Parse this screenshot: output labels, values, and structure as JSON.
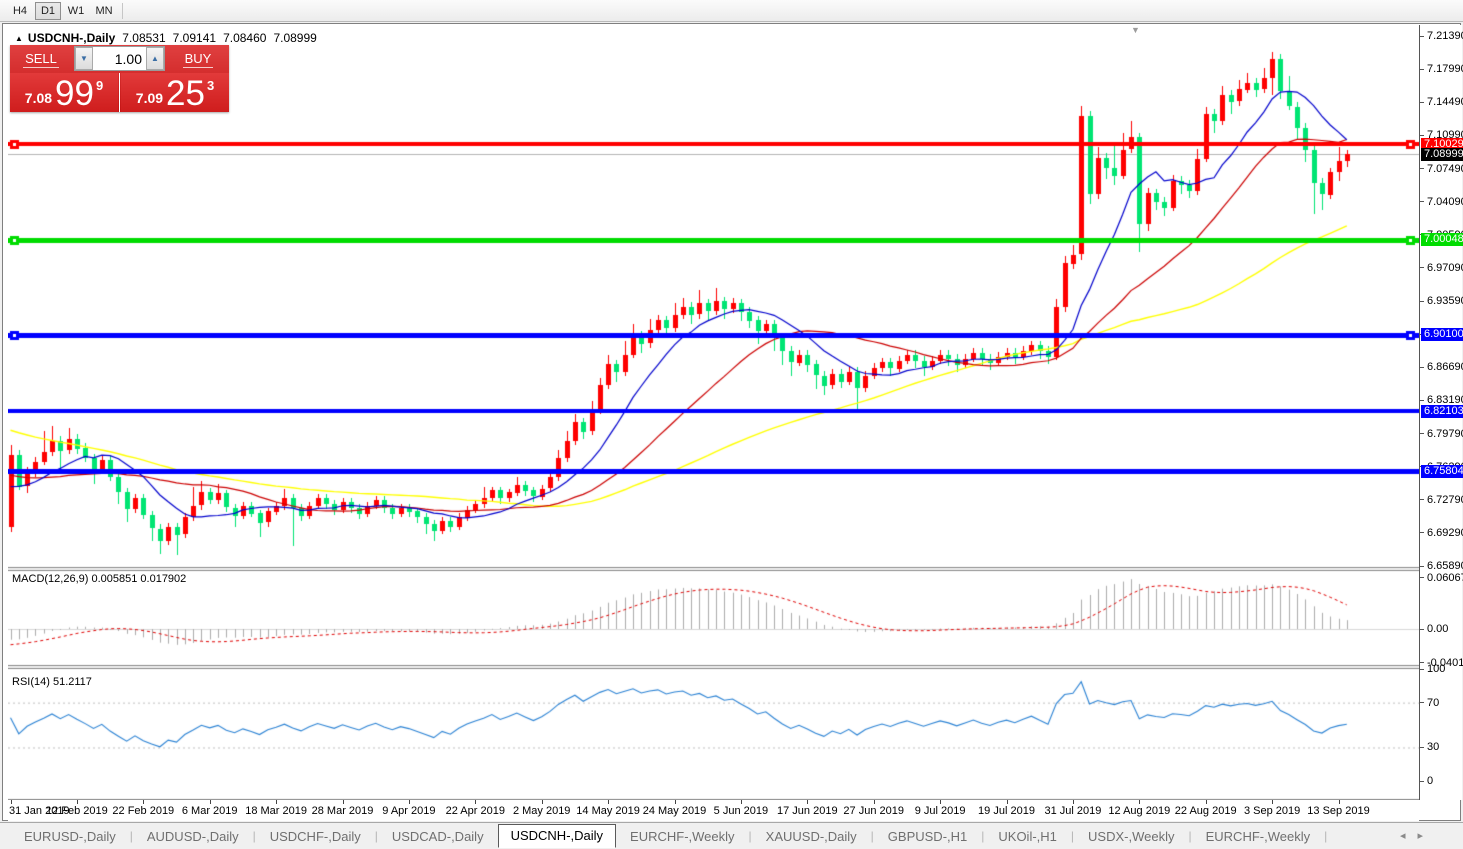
{
  "toolbar": {
    "timeframes": [
      "H4",
      "D1",
      "W1",
      "MN"
    ],
    "active": "D1"
  },
  "header": {
    "title_arrow": "▲",
    "symbol_title": "USDCNH-,Daily",
    "ohlc": {
      "open": "7.08531",
      "high": "7.09141",
      "low": "7.08460",
      "close": "7.08999"
    },
    "scroll_marker": "▼"
  },
  "one_click": {
    "sell_label": "SELL",
    "buy_label": "BUY",
    "volume": "1.00",
    "spin_down": "▼",
    "spin_up": "▲",
    "sell_small": "7.08",
    "sell_big": "99",
    "sell_sup": "9",
    "buy_small": "7.09",
    "buy_big": "25",
    "buy_sup": "3"
  },
  "indicator_labels": {
    "macd": "MACD(12,26,9) 0.005851 0.017902",
    "rsi": "RSI(14) 51.2117"
  },
  "price_axis": {
    "ticks": [
      "7.21390",
      "7.17990",
      "7.14490",
      "7.10990",
      "7.07490",
      "7.04090",
      "7.00590",
      "6.97090",
      "6.93590",
      "6.90090",
      "6.86690",
      "6.83190",
      "6.79790",
      "6.76290",
      "6.72790",
      "6.69290",
      "6.65890"
    ],
    "top_price": 7.2139,
    "bottom_price": 6.6589
  },
  "macd_axis": {
    "ticks": [
      {
        "label": "0.060674",
        "v": 0.060674
      },
      {
        "label": "0.00",
        "v": 0
      },
      {
        "label": "-0.040152",
        "v": -0.040152
      }
    ]
  },
  "rsi_axis": {
    "ticks": [
      {
        "label": "100",
        "v": 100
      },
      {
        "label": "70",
        "v": 70
      },
      {
        "label": "30",
        "v": 30
      },
      {
        "label": "0",
        "v": 0
      }
    ]
  },
  "date_axis": [
    "31 Jan 2019",
    "12 Feb 2019",
    "22 Feb 2019",
    "6 Mar 2019",
    "18 Mar 2019",
    "28 Mar 2019",
    "9 Apr 2019",
    "22 Apr 2019",
    "2 May 2019",
    "14 May 2019",
    "24 May 2019",
    "5 Jun 2019",
    "17 Jun 2019",
    "27 Jun 2019",
    "9 Jul 2019",
    "19 Jul 2019",
    "31 Jul 2019",
    "12 Aug 2019",
    "22 Aug 2019",
    "3 Sep 2019",
    "13 Sep 2019"
  ],
  "tabs": {
    "items": [
      "EURUSD-,Daily",
      "AUDUSD-,Daily",
      "USDCHF-,Daily",
      "USDCAD-,Daily",
      "USDCNH-,Daily",
      "EURCHF-,Weekly",
      "XAUUSD-,Daily",
      "GBPUSD-,H1",
      "UKOil-,H1",
      "USDX-,Weekly",
      "EURCHF-,Weekly"
    ],
    "active_index": 4,
    "arrow_left": "◂",
    "arrow_right": "▸"
  },
  "chart_data": {
    "type": "candlestick_with_indicators",
    "symbol": "USDCNH",
    "timeframe": "Daily",
    "colors": {
      "up": "#fe0000",
      "down": "#00e573",
      "ma_fast": "#0000cd",
      "ma_mid": "#cc0000",
      "ma_slow": "#ffff00",
      "macd_hist": "#ababab",
      "macd_signal": "#e00000",
      "rsi_line": "#2a82d4",
      "current_line": "#b4b4b4",
      "level_dots": "#c0c0c0"
    },
    "current_price": {
      "value": 7.08999,
      "label": "7.08999",
      "badge_bg": "#000000"
    },
    "hlines": [
      {
        "price": 7.10029,
        "label": "7.10029",
        "color": "#ff0000",
        "width": 4,
        "handles": true
      },
      {
        "price": 7.00048,
        "label": "7.00048",
        "color": "#00dc00",
        "width": 5,
        "handles": true
      },
      {
        "price": 6.901,
        "label": "6.90100",
        "color": "#0000ff",
        "width": 5,
        "handles": true
      },
      {
        "price": 6.82103,
        "label": "6.82103",
        "color": "#0000ff",
        "width": 4,
        "handles": false
      },
      {
        "price": 6.75804,
        "label": "6.75804",
        "color": "#0000ff",
        "width": 5,
        "handles": false
      }
    ],
    "moving_averages": [
      {
        "period": 10,
        "type": "sma"
      },
      {
        "period": 25,
        "type": "sma"
      },
      {
        "period": 55,
        "type": "sma"
      }
    ],
    "macd_params": {
      "fast": 12,
      "slow": 26,
      "signal": 9,
      "value": 0.005851,
      "signal_value": 0.017902
    },
    "rsi_params": {
      "period": 14,
      "value": 51.2117,
      "levels": [
        70,
        30
      ]
    },
    "warmup_closes": [
      6.9,
      6.895,
      6.89,
      6.885,
      6.888,
      6.884,
      6.88,
      6.876,
      6.87,
      6.874,
      6.866,
      6.858,
      6.862,
      6.854,
      6.846,
      6.85,
      6.842,
      6.836,
      6.84,
      6.832,
      6.824,
      6.828,
      6.82,
      6.812,
      6.816,
      6.808,
      6.8,
      6.804,
      6.796,
      6.79,
      6.794,
      6.786,
      6.78,
      6.784,
      6.776,
      6.77,
      6.774,
      6.768,
      6.762,
      6.766,
      6.758,
      6.752,
      6.756,
      6.75,
      6.744,
      6.748,
      6.742,
      6.738,
      6.742,
      6.736,
      6.732,
      6.736,
      6.74,
      6.744,
      6.74,
      6.736
    ],
    "candles": [
      [
        6.7,
        6.786,
        6.695,
        6.775
      ],
      [
        6.775,
        6.78,
        6.738,
        6.742
      ],
      [
        6.742,
        6.763,
        6.736,
        6.758
      ],
      [
        6.758,
        6.773,
        6.752,
        6.768
      ],
      [
        6.768,
        6.8,
        6.764,
        6.778
      ],
      [
        6.778,
        6.805,
        6.774,
        6.79
      ],
      [
        6.79,
        6.795,
        6.76,
        6.78
      ],
      [
        6.78,
        6.803,
        6.776,
        6.792
      ],
      [
        6.792,
        6.797,
        6.776,
        6.782
      ],
      [
        6.782,
        6.788,
        6.768,
        6.772
      ],
      [
        6.772,
        6.776,
        6.745,
        6.76
      ],
      [
        6.76,
        6.774,
        6.756,
        6.77
      ],
      [
        6.77,
        6.774,
        6.748,
        6.752
      ],
      [
        6.752,
        6.757,
        6.724,
        6.736
      ],
      [
        6.736,
        6.741,
        6.705,
        6.718
      ],
      [
        6.718,
        6.734,
        6.714,
        6.73
      ],
      [
        6.73,
        6.734,
        6.708,
        6.712
      ],
      [
        6.712,
        6.716,
        6.685,
        6.698
      ],
      [
        6.698,
        6.703,
        6.672,
        6.685
      ],
      [
        6.685,
        6.704,
        6.681,
        6.7
      ],
      [
        6.7,
        6.704,
        6.67,
        6.692
      ],
      [
        6.692,
        6.714,
        6.688,
        6.71
      ],
      [
        6.71,
        6.742,
        6.706,
        6.722
      ],
      [
        6.722,
        6.748,
        6.718,
        6.736
      ],
      [
        6.736,
        6.741,
        6.724,
        6.728
      ],
      [
        6.728,
        6.745,
        6.724,
        6.735
      ],
      [
        6.735,
        6.739,
        6.716,
        6.72
      ],
      [
        6.72,
        6.724,
        6.7,
        6.712
      ],
      [
        6.712,
        6.726,
        6.708,
        6.722
      ],
      [
        6.722,
        6.726,
        6.71,
        6.714
      ],
      [
        6.714,
        6.718,
        6.69,
        6.704
      ],
      [
        6.704,
        6.72,
        6.7,
        6.716
      ],
      [
        6.716,
        6.726,
        6.712,
        6.722
      ],
      [
        6.722,
        6.74,
        6.718,
        6.73
      ],
      [
        6.73,
        6.734,
        6.68,
        6.72
      ],
      [
        6.72,
        6.724,
        6.706,
        6.712
      ],
      [
        6.712,
        6.726,
        6.708,
        6.722
      ],
      [
        6.722,
        6.734,
        6.718,
        6.73
      ],
      [
        6.73,
        6.734,
        6.718,
        6.724
      ],
      [
        6.724,
        6.728,
        6.712,
        6.718
      ],
      [
        6.718,
        6.73,
        6.714,
        6.726
      ],
      [
        6.726,
        6.73,
        6.714,
        6.72
      ],
      [
        6.72,
        6.724,
        6.708,
        6.714
      ],
      [
        6.714,
        6.726,
        6.71,
        6.722
      ],
      [
        6.722,
        6.732,
        6.718,
        6.728
      ],
      [
        6.728,
        6.732,
        6.714,
        6.72
      ],
      [
        6.72,
        6.724,
        6.708,
        6.714
      ],
      [
        6.714,
        6.724,
        6.71,
        6.72
      ],
      [
        6.72,
        6.724,
        6.71,
        6.716
      ],
      [
        6.716,
        6.72,
        6.704,
        6.71
      ],
      [
        6.71,
        6.714,
        6.692,
        6.703
      ],
      [
        6.703,
        6.707,
        6.685,
        6.696
      ],
      [
        6.696,
        6.71,
        6.692,
        6.706
      ],
      [
        6.706,
        6.71,
        6.694,
        6.7
      ],
      [
        6.7,
        6.714,
        6.696,
        6.71
      ],
      [
        6.71,
        6.722,
        6.706,
        6.718
      ],
      [
        6.718,
        6.728,
        6.714,
        6.724
      ],
      [
        6.724,
        6.742,
        6.72,
        6.73
      ],
      [
        6.73,
        6.742,
        6.726,
        6.738
      ],
      [
        6.738,
        6.742,
        6.724,
        6.73
      ],
      [
        6.73,
        6.74,
        6.726,
        6.736
      ],
      [
        6.736,
        6.752,
        6.732,
        6.744
      ],
      [
        6.744,
        6.748,
        6.732,
        6.738
      ],
      [
        6.738,
        6.742,
        6.726,
        6.732
      ],
      [
        6.732,
        6.744,
        6.728,
        6.74
      ],
      [
        6.74,
        6.756,
        6.736,
        6.752
      ],
      [
        6.752,
        6.78,
        6.748,
        6.772
      ],
      [
        6.772,
        6.8,
        6.768,
        6.79
      ],
      [
        6.79,
        6.818,
        6.786,
        6.81
      ],
      [
        6.81,
        6.814,
        6.792,
        6.8
      ],
      [
        6.8,
        6.832,
        6.796,
        6.822
      ],
      [
        6.822,
        6.856,
        6.818,
        6.848
      ],
      [
        6.848,
        6.88,
        6.844,
        6.87
      ],
      [
        6.87,
        6.875,
        6.852,
        6.862
      ],
      [
        6.862,
        6.895,
        6.858,
        6.88
      ],
      [
        6.88,
        6.912,
        6.876,
        6.9
      ],
      [
        6.9,
        6.905,
        6.882,
        6.892
      ],
      [
        6.892,
        6.918,
        6.888,
        6.906
      ],
      [
        6.906,
        6.922,
        6.902,
        6.916
      ],
      [
        6.916,
        6.921,
        6.898,
        6.908
      ],
      [
        6.908,
        6.934,
        6.904,
        6.922
      ],
      [
        6.922,
        6.94,
        6.918,
        6.93
      ],
      [
        6.93,
        6.935,
        6.912,
        6.922
      ],
      [
        6.922,
        6.948,
        6.918,
        6.934
      ],
      [
        6.934,
        6.939,
        6.916,
        6.926
      ],
      [
        6.926,
        6.95,
        6.922,
        6.936
      ],
      [
        6.936,
        6.941,
        6.918,
        6.928
      ],
      [
        6.928,
        6.94,
        6.924,
        6.934
      ],
      [
        6.934,
        6.939,
        6.916,
        6.925
      ],
      [
        6.925,
        6.93,
        6.908,
        6.916
      ],
      [
        6.916,
        6.921,
        6.892,
        6.905
      ],
      [
        6.905,
        6.917,
        6.901,
        6.912
      ],
      [
        6.912,
        6.917,
        6.885,
        6.898
      ],
      [
        6.898,
        6.903,
        6.87,
        6.884
      ],
      [
        6.884,
        6.889,
        6.858,
        6.872
      ],
      [
        6.872,
        6.885,
        6.868,
        6.88
      ],
      [
        6.88,
        6.885,
        6.862,
        6.87
      ],
      [
        6.87,
        6.875,
        6.845,
        6.858
      ],
      [
        6.858,
        6.863,
        6.838,
        6.848
      ],
      [
        6.848,
        6.865,
        6.844,
        6.86
      ],
      [
        6.86,
        6.865,
        6.845,
        6.852
      ],
      [
        6.852,
        6.867,
        6.848,
        6.862
      ],
      [
        6.862,
        6.867,
        6.823,
        6.845
      ],
      [
        6.845,
        6.863,
        6.841,
        6.858
      ],
      [
        6.858,
        6.871,
        6.854,
        6.866
      ],
      [
        6.866,
        6.877,
        6.862,
        6.872
      ],
      [
        6.872,
        6.877,
        6.858,
        6.866
      ],
      [
        6.866,
        6.879,
        6.862,
        6.874
      ],
      [
        6.874,
        6.885,
        6.87,
        6.88
      ],
      [
        6.88,
        6.885,
        6.866,
        6.874
      ],
      [
        6.874,
        6.879,
        6.858,
        6.868
      ],
      [
        6.868,
        6.879,
        6.864,
        6.874
      ],
      [
        6.874,
        6.885,
        6.87,
        6.88
      ],
      [
        6.88,
        6.885,
        6.868,
        6.876
      ],
      [
        6.876,
        6.881,
        6.862,
        6.87
      ],
      [
        6.87,
        6.881,
        6.866,
        6.876
      ],
      [
        6.876,
        6.887,
        6.872,
        6.882
      ],
      [
        6.882,
        6.887,
        6.868,
        6.876
      ],
      [
        6.876,
        6.881,
        6.864,
        6.872
      ],
      [
        6.872,
        6.883,
        6.868,
        6.878
      ],
      [
        6.878,
        6.887,
        6.874,
        6.882
      ],
      [
        6.882,
        6.887,
        6.87,
        6.878
      ],
      [
        6.878,
        6.889,
        6.874,
        6.884
      ],
      [
        6.884,
        6.895,
        6.88,
        6.89
      ],
      [
        6.89,
        6.895,
        6.876,
        6.884
      ],
      [
        6.884,
        6.889,
        6.87,
        6.878
      ],
      [
        6.878,
        6.938,
        6.874,
        6.93
      ],
      [
        6.93,
        6.984,
        6.925,
        6.976
      ],
      [
        6.976,
        6.995,
        6.97,
        6.985
      ],
      [
        6.985,
        7.141,
        6.98,
        7.13
      ],
      [
        7.13,
        7.135,
        7.038,
        7.048
      ],
      [
        7.048,
        7.098,
        7.044,
        7.086
      ],
      [
        7.086,
        7.091,
        7.064,
        7.076
      ],
      [
        7.076,
        7.102,
        7.058,
        7.068
      ],
      [
        7.068,
        7.112,
        7.064,
        7.095
      ],
      [
        7.095,
        7.125,
        7.091,
        7.108
      ],
      [
        7.108,
        7.112,
        6.987,
        7.017
      ],
      [
        7.017,
        7.055,
        7.01,
        7.049
      ],
      [
        7.049,
        7.054,
        7.032,
        7.04
      ],
      [
        7.04,
        7.045,
        7.025,
        7.034
      ],
      [
        7.034,
        7.068,
        7.03,
        7.062
      ],
      [
        7.062,
        7.067,
        7.048,
        7.058
      ],
      [
        7.058,
        7.063,
        7.044,
        7.052
      ],
      [
        7.052,
        7.096,
        7.048,
        7.085
      ],
      [
        7.085,
        7.14,
        7.082,
        7.132
      ],
      [
        7.132,
        7.137,
        7.112,
        7.125
      ],
      [
        7.125,
        7.162,
        7.121,
        7.152
      ],
      [
        7.152,
        7.157,
        7.132,
        7.145
      ],
      [
        7.145,
        7.168,
        7.141,
        7.158
      ],
      [
        7.158,
        7.175,
        7.154,
        7.165
      ],
      [
        7.165,
        7.17,
        7.15,
        7.158
      ],
      [
        7.158,
        7.18,
        7.154,
        7.17
      ],
      [
        7.17,
        7.197,
        7.152,
        7.19
      ],
      [
        7.19,
        7.195,
        7.148,
        7.156
      ],
      [
        7.156,
        7.172,
        7.136,
        7.14
      ],
      [
        7.14,
        7.145,
        7.105,
        7.118
      ],
      [
        7.118,
        7.123,
        7.082,
        7.095
      ],
      [
        7.095,
        7.1,
        7.028,
        7.06
      ],
      [
        7.06,
        7.065,
        7.032,
        7.048
      ],
      [
        7.048,
        7.076,
        7.044,
        7.072
      ],
      [
        7.072,
        7.098,
        7.062,
        7.083
      ],
      [
        7.083,
        7.094,
        7.076,
        7.09
      ]
    ]
  }
}
